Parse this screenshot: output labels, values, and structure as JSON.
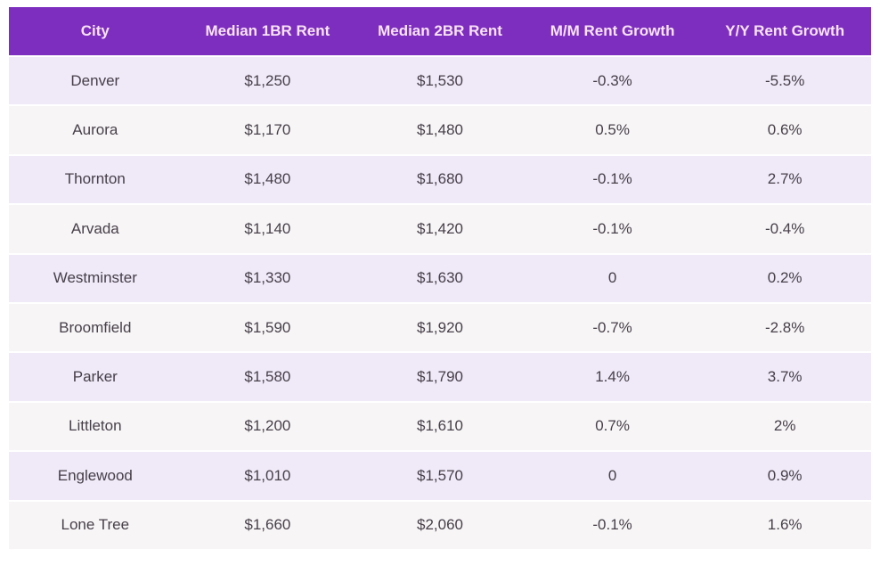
{
  "colors": {
    "page_bg": "#ffffff",
    "header_bg": "#7d2ebe",
    "header_text": "#f8e3f6",
    "row_odd_bg": "#efe9f8",
    "row_even_bg": "#f7f5f6",
    "body_text": "#474049",
    "row_divider": "#ffffff"
  },
  "chart_data": {
    "type": "table",
    "columns": [
      "City",
      "Median 1BR Rent",
      "Median 2BR Rent",
      "M/M Rent Growth",
      "Y/Y Rent Growth"
    ],
    "rows": [
      [
        "Denver",
        "$1,250",
        "$1,530",
        "-0.3%",
        "-5.5%"
      ],
      [
        "Aurora",
        "$1,170",
        "$1,480",
        "0.5%",
        "0.6%"
      ],
      [
        "Thornton",
        "$1,480",
        "$1,680",
        "-0.1%",
        "2.7%"
      ],
      [
        "Arvada",
        "$1,140",
        "$1,420",
        "-0.1%",
        "-0.4%"
      ],
      [
        "Westminster",
        "$1,330",
        "$1,630",
        "0",
        "0.2%"
      ],
      [
        "Broomfield",
        "$1,590",
        "$1,920",
        "-0.7%",
        "-2.8%"
      ],
      [
        "Parker",
        "$1,580",
        "$1,790",
        "1.4%",
        "3.7%"
      ],
      [
        "Littleton",
        "$1,200",
        "$1,610",
        "0.7%",
        "2%"
      ],
      [
        "Englewood",
        "$1,010",
        "$1,570",
        "0",
        "0.9%"
      ],
      [
        "Lone Tree",
        "$1,660",
        "$2,060",
        "-0.1%",
        "1.6%"
      ]
    ]
  }
}
